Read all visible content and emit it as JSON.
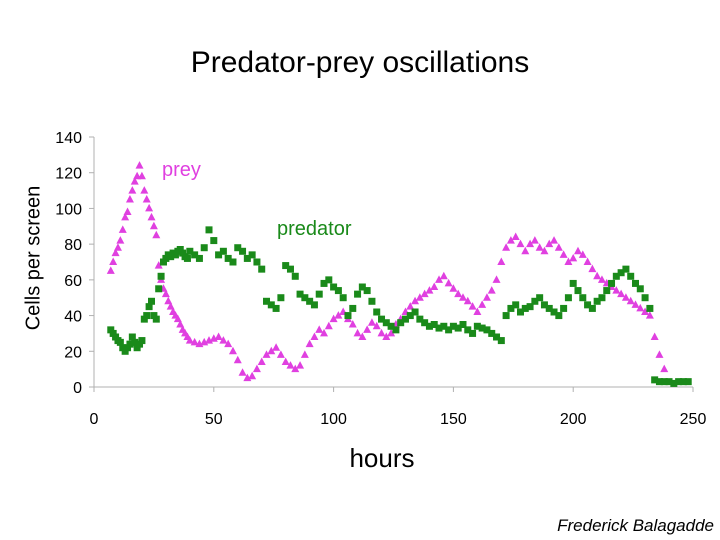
{
  "title": "Predator-prey oscillations",
  "ylabel": "Cells per screen",
  "xlabel": "hours",
  "credit": "Frederick Balagadde",
  "colors": {
    "prey": "#e040e0",
    "predator": "#1a8a1a",
    "axis": "#b0b0b0"
  },
  "chart_data": {
    "type": "scatter",
    "title": "Predator-prey oscillations",
    "xlabel": "hours",
    "ylabel": "Cells per screen",
    "xlim": [
      0,
      250
    ],
    "ylim": [
      0,
      140
    ],
    "xticks": [
      0,
      50,
      100,
      150,
      200,
      250
    ],
    "yticks": [
      0,
      20,
      40,
      60,
      80,
      100,
      120,
      140
    ],
    "grid": false,
    "annotations": [
      {
        "text": "prey",
        "series": "prey"
      },
      {
        "text": "predator",
        "series": "predator"
      }
    ],
    "series": [
      {
        "name": "prey",
        "marker": "triangle",
        "x": [
          7,
          8,
          9,
          10,
          11,
          12,
          13,
          14,
          15,
          16,
          17,
          18,
          19,
          20,
          21,
          22,
          23,
          24,
          25,
          26,
          27,
          28,
          29,
          30,
          31,
          32,
          33,
          34,
          35,
          36,
          37,
          38,
          39,
          40,
          42,
          44,
          46,
          48,
          50,
          52,
          54,
          56,
          58,
          60,
          62,
          64,
          66,
          68,
          70,
          72,
          74,
          76,
          78,
          80,
          82,
          84,
          86,
          88,
          90,
          92,
          94,
          96,
          98,
          100,
          102,
          104,
          106,
          108,
          110,
          112,
          114,
          116,
          118,
          120,
          122,
          124,
          126,
          128,
          130,
          132,
          134,
          136,
          138,
          140,
          142,
          144,
          146,
          148,
          150,
          152,
          154,
          156,
          158,
          160,
          162,
          164,
          166,
          168,
          170,
          172,
          174,
          176,
          178,
          180,
          182,
          184,
          186,
          188,
          190,
          192,
          194,
          196,
          198,
          200,
          202,
          204,
          206,
          208,
          210,
          212,
          214,
          216,
          218,
          220,
          222,
          224,
          226,
          228,
          230,
          232,
          234,
          236,
          238
        ],
        "y": [
          65,
          70,
          75,
          78,
          82,
          88,
          95,
          98,
          105,
          110,
          115,
          118,
          124,
          118,
          110,
          105,
          100,
          95,
          90,
          85,
          68,
          60,
          55,
          52,
          48,
          45,
          42,
          40,
          38,
          35,
          32,
          30,
          28,
          26,
          25,
          24,
          25,
          26,
          27,
          28,
          26,
          24,
          20,
          15,
          8,
          5,
          6,
          10,
          14,
          18,
          20,
          22,
          18,
          14,
          12,
          10,
          12,
          18,
          24,
          28,
          32,
          30,
          34,
          38,
          40,
          42,
          38,
          35,
          30,
          28,
          32,
          36,
          34,
          30,
          28,
          30,
          35,
          38,
          42,
          45,
          48,
          50,
          52,
          54,
          56,
          60,
          62,
          58,
          55,
          52,
          50,
          48,
          45,
          42,
          46,
          50,
          54,
          60,
          70,
          78,
          82,
          84,
          80,
          76,
          80,
          82,
          78,
          76,
          80,
          82,
          78,
          74,
          70,
          72,
          76,
          74,
          70,
          66,
          62,
          60,
          58,
          56,
          54,
          52,
          50,
          48,
          46,
          44,
          42,
          40,
          28,
          18,
          10
        ]
      },
      {
        "name": "predator",
        "marker": "square",
        "x": [
          7,
          8,
          9,
          10,
          11,
          12,
          13,
          14,
          15,
          16,
          17,
          18,
          19,
          20,
          21,
          22,
          23,
          24,
          25,
          26,
          27,
          28,
          29,
          30,
          31,
          32,
          33,
          34,
          35,
          36,
          37,
          38,
          39,
          40,
          42,
          44,
          46,
          48,
          50,
          52,
          54,
          56,
          58,
          60,
          62,
          64,
          66,
          68,
          70,
          72,
          74,
          76,
          78,
          80,
          82,
          84,
          86,
          88,
          90,
          92,
          94,
          96,
          98,
          100,
          102,
          104,
          106,
          108,
          110,
          112,
          114,
          116,
          118,
          120,
          122,
          124,
          126,
          128,
          130,
          132,
          134,
          136,
          138,
          140,
          142,
          144,
          146,
          148,
          150,
          152,
          154,
          156,
          158,
          160,
          162,
          164,
          166,
          168,
          170,
          172,
          174,
          176,
          178,
          180,
          182,
          184,
          186,
          188,
          190,
          192,
          194,
          196,
          198,
          200,
          202,
          204,
          206,
          208,
          210,
          212,
          214,
          216,
          218,
          220,
          222,
          224,
          226,
          228,
          230,
          232,
          234,
          236,
          238,
          240,
          242,
          244,
          246,
          248
        ],
        "y": [
          32,
          30,
          28,
          26,
          25,
          22,
          20,
          22,
          24,
          28,
          25,
          22,
          24,
          26,
          38,
          40,
          45,
          48,
          40,
          38,
          55,
          62,
          70,
          72,
          74,
          73,
          75,
          74,
          76,
          77,
          75,
          73,
          72,
          76,
          74,
          72,
          78,
          88,
          82,
          74,
          76,
          72,
          70,
          78,
          76,
          72,
          74,
          70,
          66,
          48,
          46,
          44,
          50,
          68,
          66,
          62,
          52,
          50,
          48,
          46,
          52,
          58,
          60,
          56,
          54,
          50,
          40,
          44,
          52,
          56,
          54,
          48,
          42,
          38,
          36,
          34,
          32,
          36,
          38,
          40,
          42,
          38,
          36,
          34,
          35,
          33,
          34,
          32,
          34,
          33,
          35,
          32,
          30,
          34,
          33,
          32,
          30,
          28,
          26,
          40,
          44,
          46,
          42,
          44,
          45,
          48,
          50,
          46,
          44,
          42,
          40,
          44,
          50,
          58,
          54,
          50,
          46,
          44,
          48,
          50,
          54,
          58,
          62,
          64,
          66,
          62,
          58,
          55,
          50,
          44,
          4,
          3,
          3,
          3,
          2,
          3,
          3,
          3
        ]
      }
    ]
  }
}
